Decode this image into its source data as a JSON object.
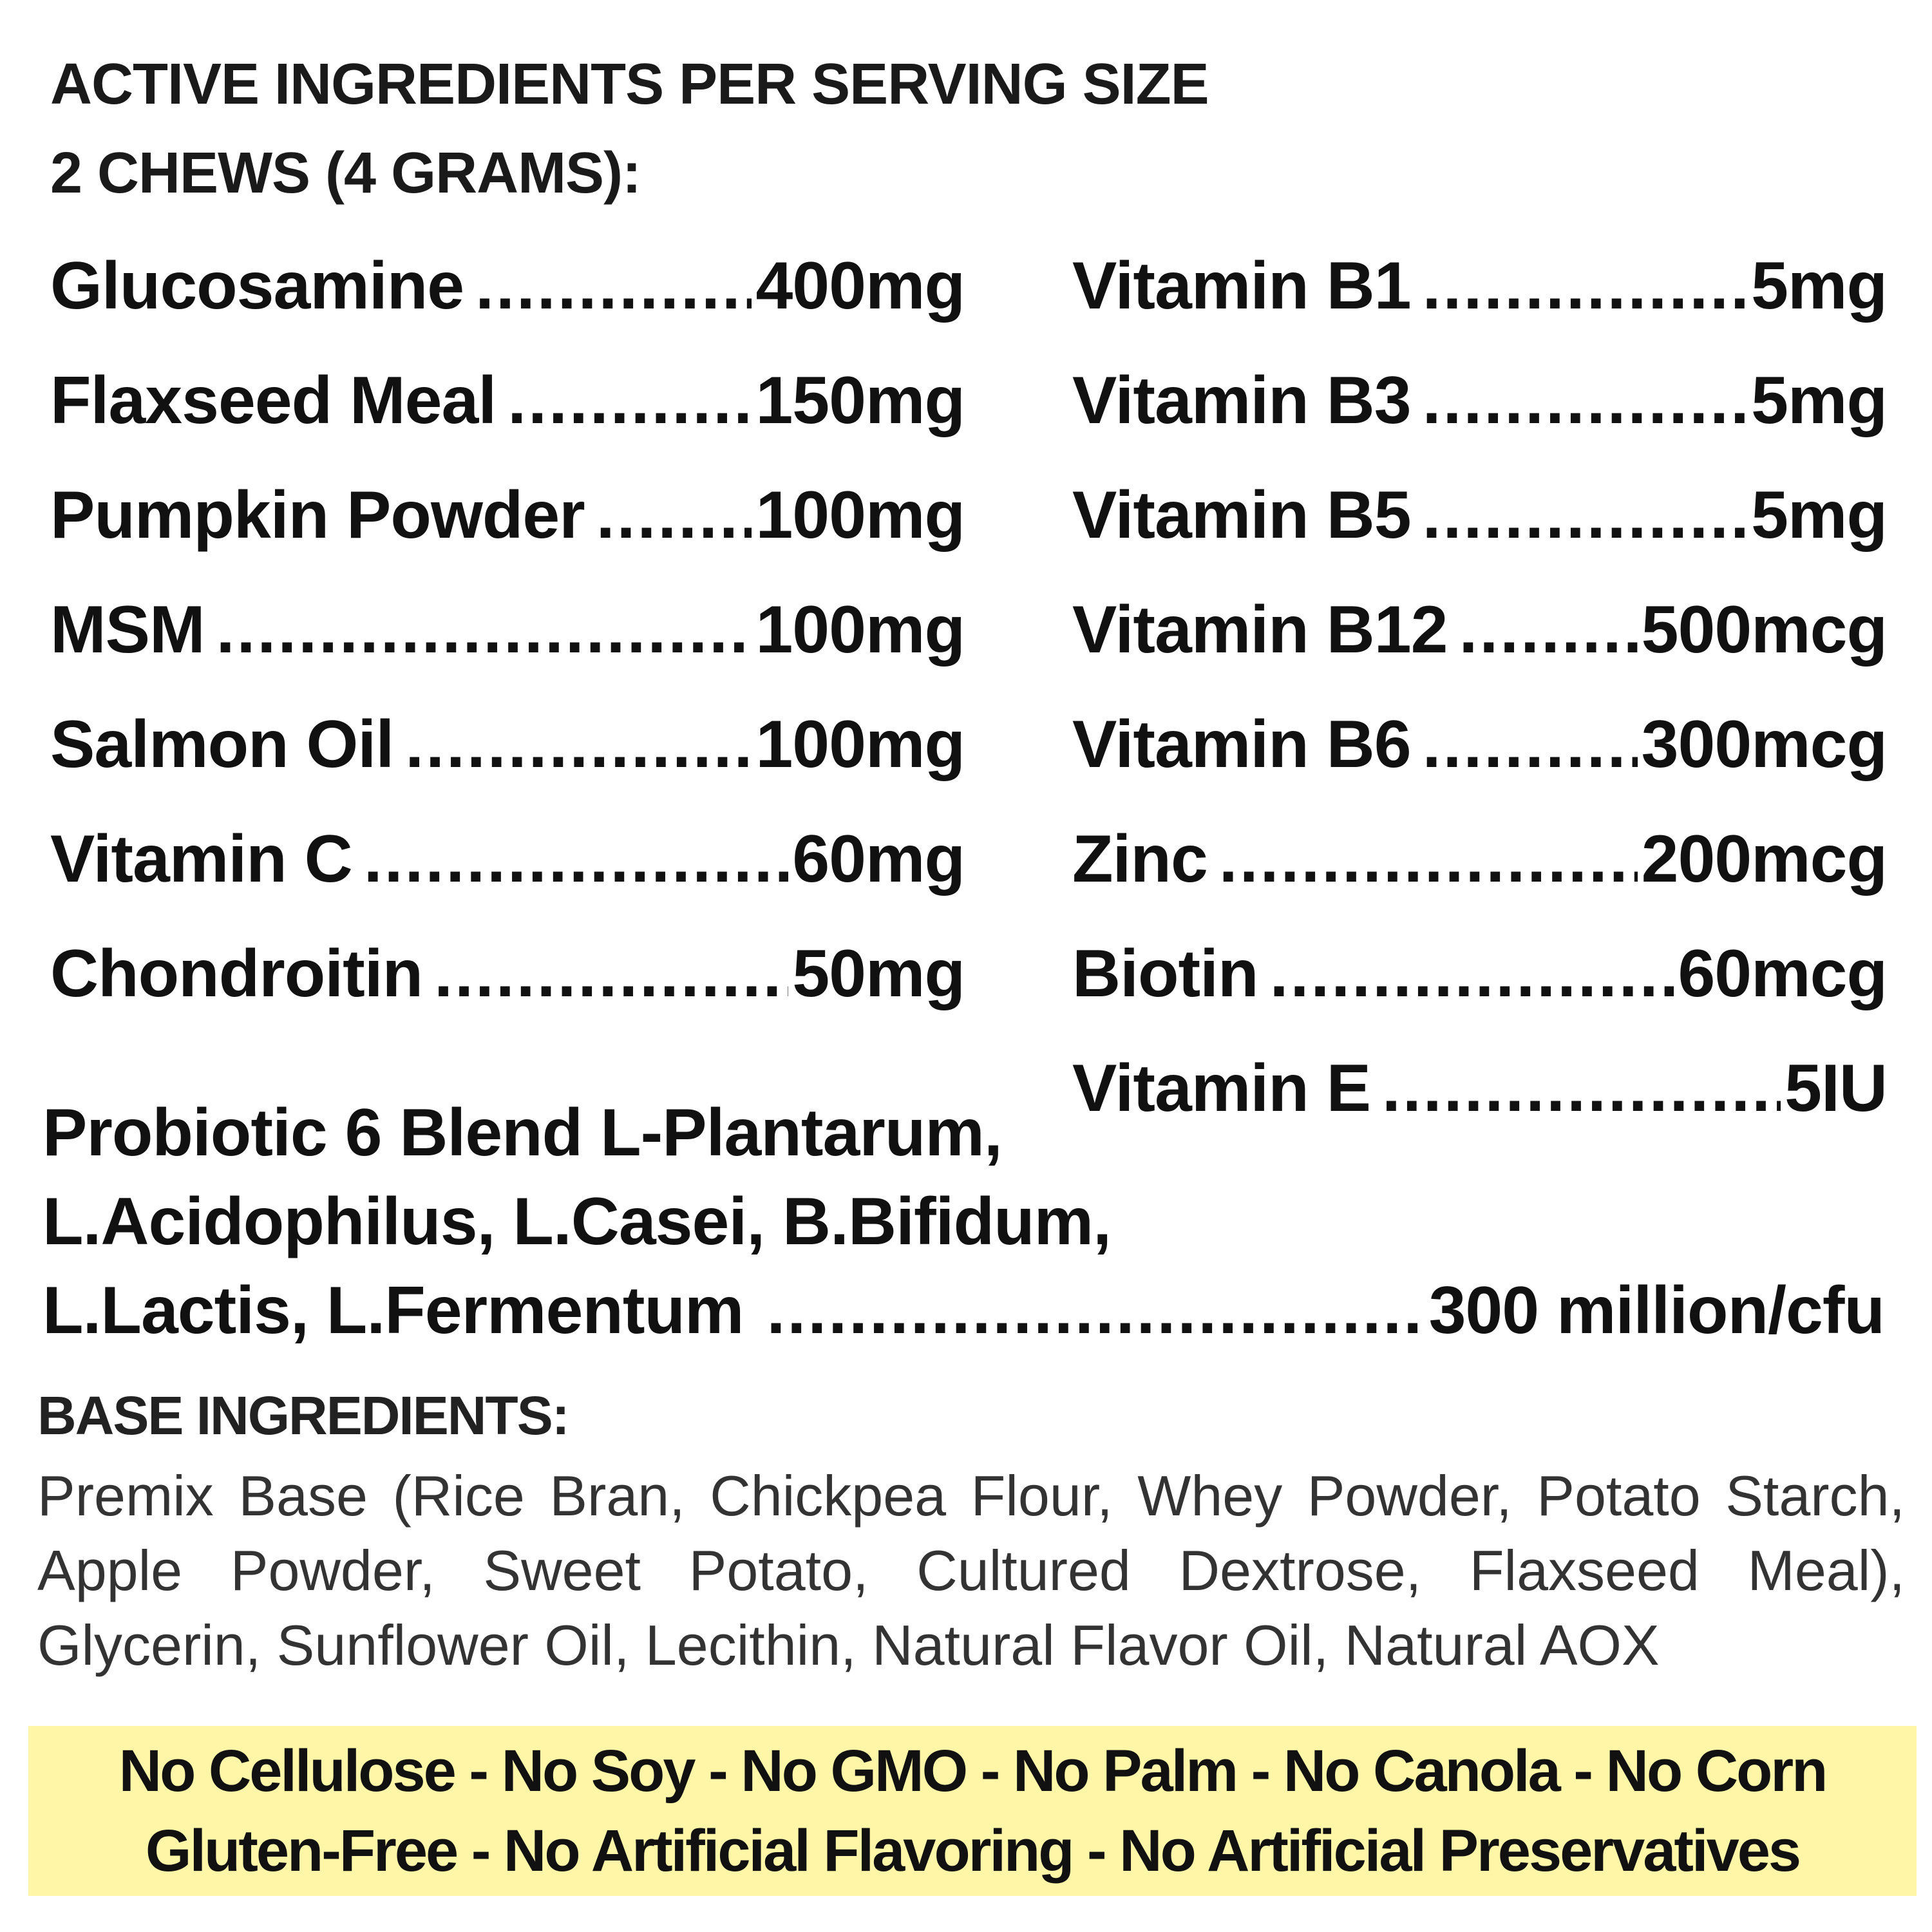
{
  "header": {
    "line1": "ACTIVE INGREDIENTS PER SERVING SIZE",
    "line2": "2 CHEWS (4 GRAMS):"
  },
  "left_ingredients": [
    {
      "name": "Glucosamine",
      "amount": "400mg"
    },
    {
      "name": "Flaxseed Meal",
      "amount": "150mg"
    },
    {
      "name": "Pumpkin Powder",
      "amount": "100mg"
    },
    {
      "name": "MSM",
      "amount": "100mg"
    },
    {
      "name": "Salmon Oil",
      "amount": "100mg"
    },
    {
      "name": "Vitamin C",
      "amount": "60mg"
    },
    {
      "name": "Chondroitin",
      "amount": "50mg"
    }
  ],
  "right_ingredients": [
    {
      "name": "Vitamin B1",
      "amount": "5mg"
    },
    {
      "name": "Vitamin B3",
      "amount": "5mg"
    },
    {
      "name": "Vitamin B5",
      "amount": "5mg"
    },
    {
      "name": "Vitamin B12",
      "amount": "500mcg"
    },
    {
      "name": "Vitamin B6",
      "amount": "300mcg"
    },
    {
      "name": "Zinc",
      "amount": "200mcg"
    },
    {
      "name": "Biotin",
      "amount": "60mcg"
    },
    {
      "name": "Vitamin E",
      "amount": "5IU"
    }
  ],
  "probiotic": {
    "line1": "Probiotic   6   Blend   L-Plantarum,",
    "line2": "L.Acidophilus,  L.Casei,  B.Bifidum,",
    "line3": "L.Lactis, L.Fermentum",
    "amount": "300 million/cfu"
  },
  "leader_dots": "........................................................................................",
  "base": {
    "title": "BASE INGREDIENTS:",
    "text": "Premix Base (Rice Bran, Chickpea Flour, Whey Powder, Potato Starch, Apple Powder, Sweet Potato, Cultured Dextrose, Flaxseed Meal), Glycerin, Sunflower Oil, Lecithin, Natural Flavor Oil, Natural AOX"
  },
  "banner": {
    "line1": "No Cellulose - No Soy - No GMO - No Palm - No Canola - No Corn",
    "line2": "Gluten-Free - No Artificial Flavoring - No Artificial Preservatives"
  },
  "colors": {
    "banner_bg": "#fff6a8",
    "text": "#111111"
  }
}
